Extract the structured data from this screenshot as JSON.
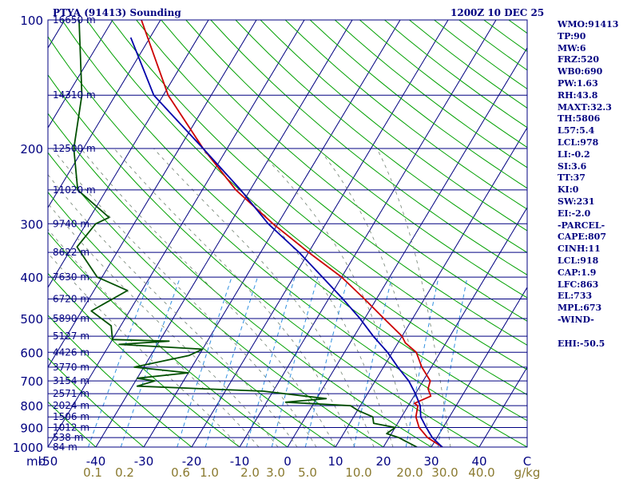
{
  "header": {
    "title": "PTYA (91413) Sounding",
    "time": "1200Z 10 DEC 25"
  },
  "stats": [
    "WMO:91413",
    "TP:90",
    "MW:6",
    "FRZ:520",
    "WB0:690",
    "PW:1.63",
    "RH:43.8",
    "MAXT:32.3",
    "TH:5806",
    "L57:5.4",
    "LCL:978",
    "LI:-0.2",
    "SI:3.6",
    "TT:37",
    "KI:0",
    "SW:231",
    "EI:-2.0",
    "-PARCEL-",
    "CAPE:807",
    "CINH:11",
    "LCL:918",
    "CAP:1.9",
    "LFC:863",
    "EL:733",
    "MPL:673",
    "-WIND-",
    "",
    "EHI:-50.5"
  ],
  "chart_data": {
    "type": "line",
    "diagram": "skew-T log-p",
    "title": "PTYA (91413) Sounding",
    "xlabel": "",
    "ylabel": "mb",
    "pressure_range_mb": [
      1000,
      100
    ],
    "temperature_range_c": [
      -50,
      50
    ],
    "pressure_labels": [
      100,
      200,
      300,
      400,
      500,
      600,
      700,
      800,
      900,
      1000
    ],
    "temperature_labels": [
      "-50",
      "-40",
      "-30",
      "-20",
      "-10",
      "0",
      "10",
      "20",
      "30",
      "40",
      "C"
    ],
    "mixing_ratio_labels": [
      "0.1",
      "0.2",
      "0.6",
      "1.0",
      "2.0",
      "3.0",
      "5.0",
      "10.0",
      "20.0",
      "30.0",
      "40.0",
      "g/kg"
    ],
    "height_levels": [
      {
        "p": 100,
        "label": "16650 m"
      },
      {
        "p": 150,
        "label": "14310 m"
      },
      {
        "p": 200,
        "label": "12500 m"
      },
      {
        "p": 250,
        "label": "11020 m"
      },
      {
        "p": 300,
        "label": "9740 m"
      },
      {
        "p": 350,
        "label": "8622 m"
      },
      {
        "p": 400,
        "label": "7630 m"
      },
      {
        "p": 450,
        "label": "6720 m"
      },
      {
        "p": 500,
        "label": "5890 m"
      },
      {
        "p": 550,
        "label": "5127 m"
      },
      {
        "p": 600,
        "label": "4426 m"
      },
      {
        "p": 650,
        "label": "3770 m"
      },
      {
        "p": 700,
        "label": "3154 m"
      },
      {
        "p": 750,
        "label": "2571 m"
      },
      {
        "p": 800,
        "label": "2024 m"
      },
      {
        "p": 850,
        "label": "1506 m"
      },
      {
        "p": 900,
        "label": "1012 m"
      },
      {
        "p": 950,
        "label": "538 m"
      },
      {
        "p": 1000,
        "label": "84 m"
      }
    ],
    "series": [
      {
        "role": "temperature",
        "color": "#cc0000",
        "points": [
          [
            100,
            -84
          ],
          [
            150,
            -69
          ],
          [
            200,
            -55
          ],
          [
            250,
            -43
          ],
          [
            300,
            -31
          ],
          [
            350,
            -20
          ],
          [
            400,
            -10
          ],
          [
            450,
            -2.5
          ],
          [
            500,
            4
          ],
          [
            550,
            10
          ],
          [
            570,
            11.5
          ],
          [
            600,
            15
          ],
          [
            650,
            18
          ],
          [
            700,
            21.5
          ],
          [
            730,
            22
          ],
          [
            760,
            23.5
          ],
          [
            790,
            21
          ],
          [
            800,
            22
          ],
          [
            850,
            23
          ],
          [
            900,
            25
          ],
          [
            950,
            28
          ],
          [
            1000,
            32.3
          ]
        ]
      },
      {
        "role": "dewpoint",
        "color": "#005000",
        "points": [
          [
            100,
            -97
          ],
          [
            150,
            -87
          ],
          [
            200,
            -82
          ],
          [
            250,
            -76
          ],
          [
            290,
            -66
          ],
          [
            300,
            -68
          ],
          [
            340,
            -69
          ],
          [
            400,
            -61
          ],
          [
            430,
            -53
          ],
          [
            480,
            -58
          ],
          [
            520,
            -52
          ],
          [
            560,
            -50
          ],
          [
            565,
            -38
          ],
          [
            575,
            -48
          ],
          [
            590,
            -30
          ],
          [
            610,
            -32
          ],
          [
            650,
            -42
          ],
          [
            670,
            -30
          ],
          [
            690,
            -40
          ],
          [
            700,
            -36
          ],
          [
            720,
            -39
          ],
          [
            740,
            -12
          ],
          [
            770,
            2
          ],
          [
            785,
            -6
          ],
          [
            800,
            8
          ],
          [
            820,
            10
          ],
          [
            850,
            14
          ],
          [
            880,
            15
          ],
          [
            900,
            20
          ],
          [
            930,
            19
          ],
          [
            950,
            22
          ],
          [
            970,
            24
          ],
          [
            1000,
            27
          ]
        ]
      },
      {
        "role": "parcel",
        "color": "#0000aa",
        "points": [
          [
            110,
            -84
          ],
          [
            150,
            -72
          ],
          [
            200,
            -55
          ],
          [
            250,
            -42
          ],
          [
            300,
            -32
          ],
          [
            350,
            -22
          ],
          [
            400,
            -14
          ],
          [
            450,
            -7
          ],
          [
            500,
            -1
          ],
          [
            550,
            4
          ],
          [
            600,
            9
          ],
          [
            650,
            13
          ],
          [
            700,
            17
          ],
          [
            750,
            20
          ],
          [
            800,
            22.5
          ],
          [
            850,
            24
          ],
          [
            900,
            26.5
          ],
          [
            950,
            29
          ],
          [
            1000,
            32.3
          ]
        ]
      }
    ],
    "background": {
      "isobars": true,
      "isotherms_color": "#000080",
      "dry_adiabats_color": "#00a000",
      "moist_adiabats_color": "#708070",
      "mixing_ratio_color": "#3090e0"
    }
  }
}
